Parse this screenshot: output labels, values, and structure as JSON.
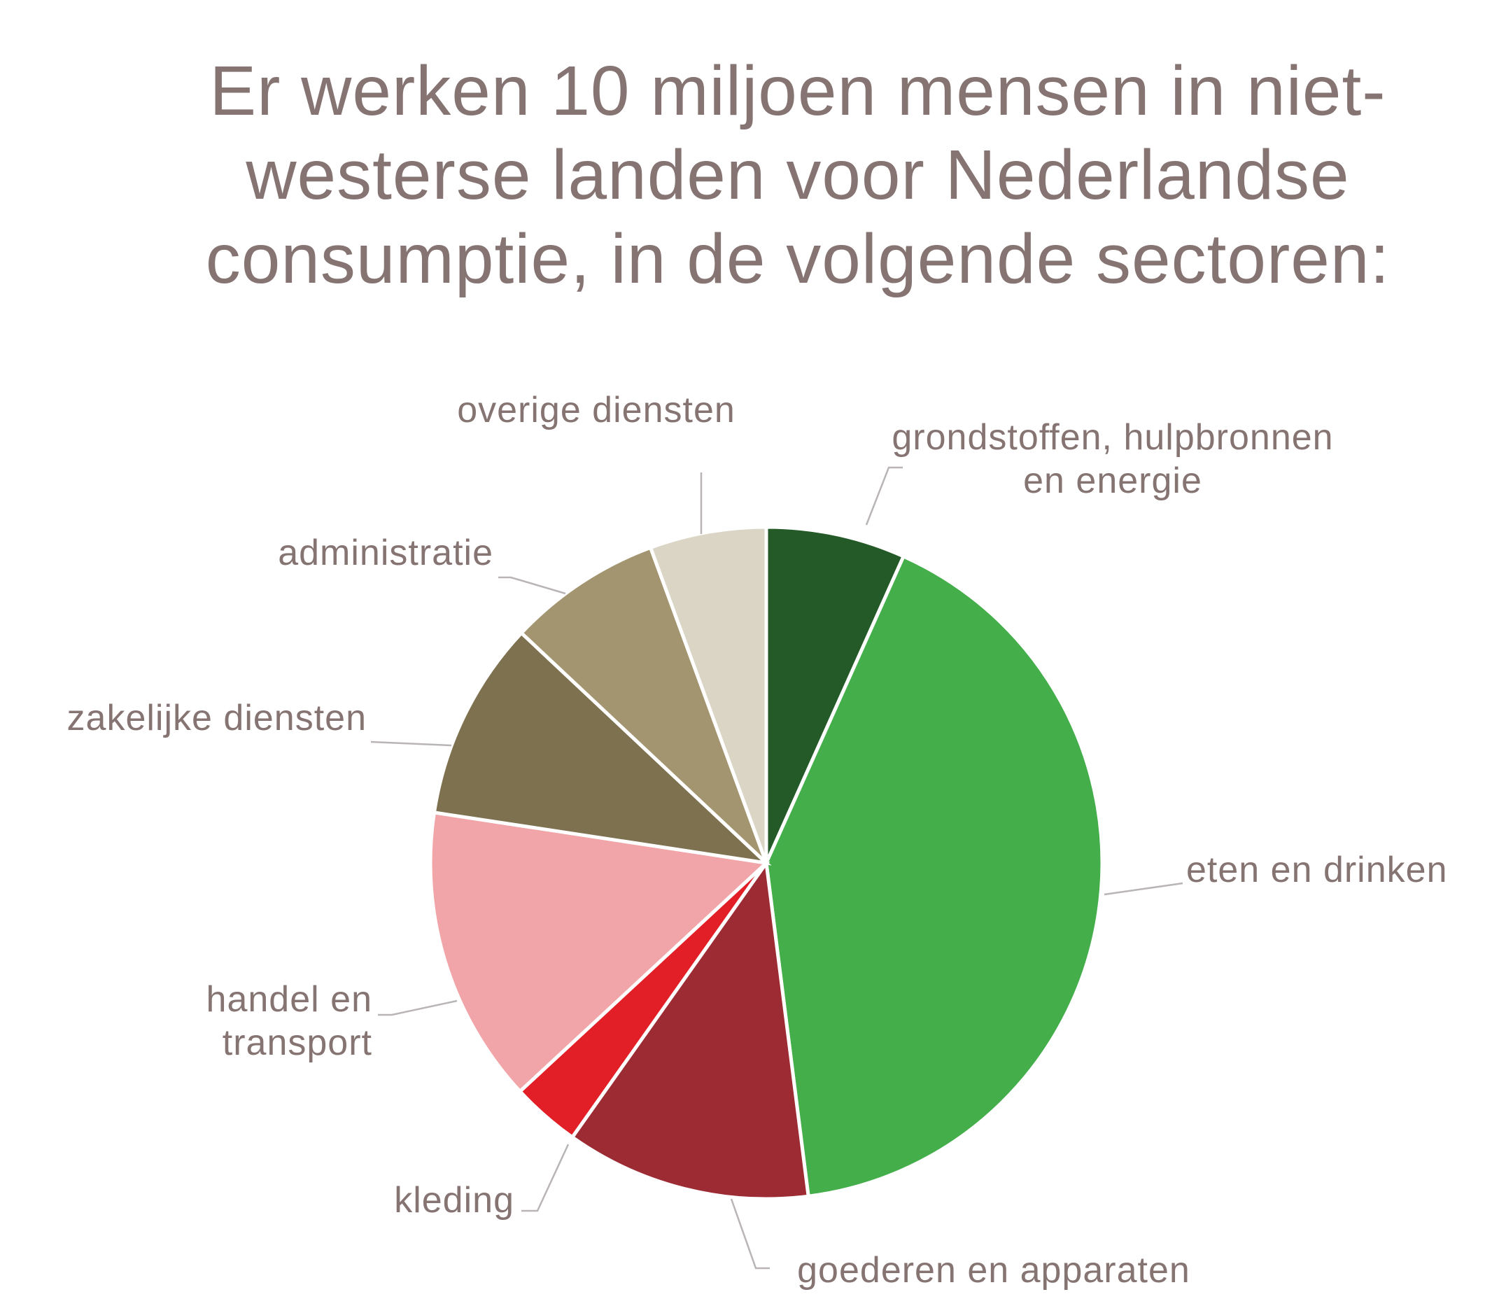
{
  "title": {
    "line1": "Er werken 10 miljoen mensen in niet-",
    "line2": "westerse landen voor Nederlandse",
    "line3": "consumptie, in de volgende sectoren:"
  },
  "chart_data": {
    "type": "pie",
    "title": "Er werken 10 miljoen mensen in niet-westerse landen voor Nederlandse consumptie, in de volgende sectoren:",
    "start": "12 o'clock, clockwise",
    "slices": [
      {
        "label": "grondstoffen, hulpbronnen en energie",
        "lines": [
          "grondstoffen, hulpbronnen",
          "en energie"
        ],
        "value": 6.7,
        "color": "#245a27"
      },
      {
        "label": "eten en drinken",
        "lines": [
          "eten en drinken"
        ],
        "value": 41.3,
        "color": "#44ae4b"
      },
      {
        "label": "goederen en apparaten",
        "lines": [
          "goederen en apparaten"
        ],
        "value": 11.8,
        "color": "#9c2b33"
      },
      {
        "label": "kleding",
        "lines": [
          "kleding"
        ],
        "value": 3.3,
        "color": "#e21f27"
      },
      {
        "label": "handel en transport",
        "lines": [
          "handel en",
          "transport"
        ],
        "value": 14.3,
        "color": "#f2a5a8"
      },
      {
        "label": "zakelijke diensten",
        "lines": [
          "zakelijke diensten"
        ],
        "value": 9.6,
        "color": "#7e7150"
      },
      {
        "label": "administratie",
        "lines": [
          "administratie"
        ],
        "value": 7.4,
        "color": "#a3956f"
      },
      {
        "label": "overige diensten",
        "lines": [
          "overige diensten"
        ],
        "value": 5.6,
        "color": "#dbd5c5"
      }
    ]
  }
}
